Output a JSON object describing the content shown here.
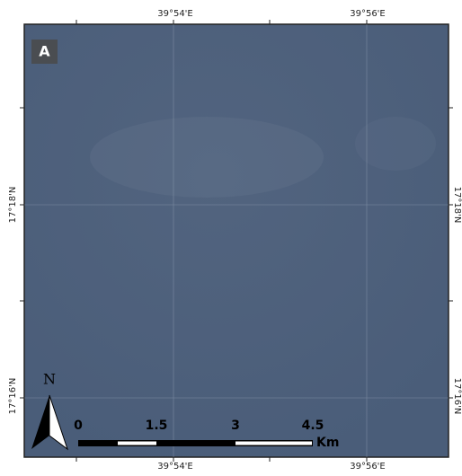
{
  "map": {
    "panel_label": "A",
    "graticule": {
      "top": [
        "39°54'E",
        "39°56'E"
      ],
      "bottom": [
        "39°54'E",
        "39°56'E"
      ],
      "left": [
        "17°18'N",
        "17°16'N"
      ],
      "right": [
        "17°18'N",
        "17°16'N"
      ]
    },
    "north_arrow": "N",
    "scale_bar": {
      "labels": [
        "0",
        "1.5",
        "3",
        "4.5"
      ],
      "unit": "Km"
    }
  }
}
